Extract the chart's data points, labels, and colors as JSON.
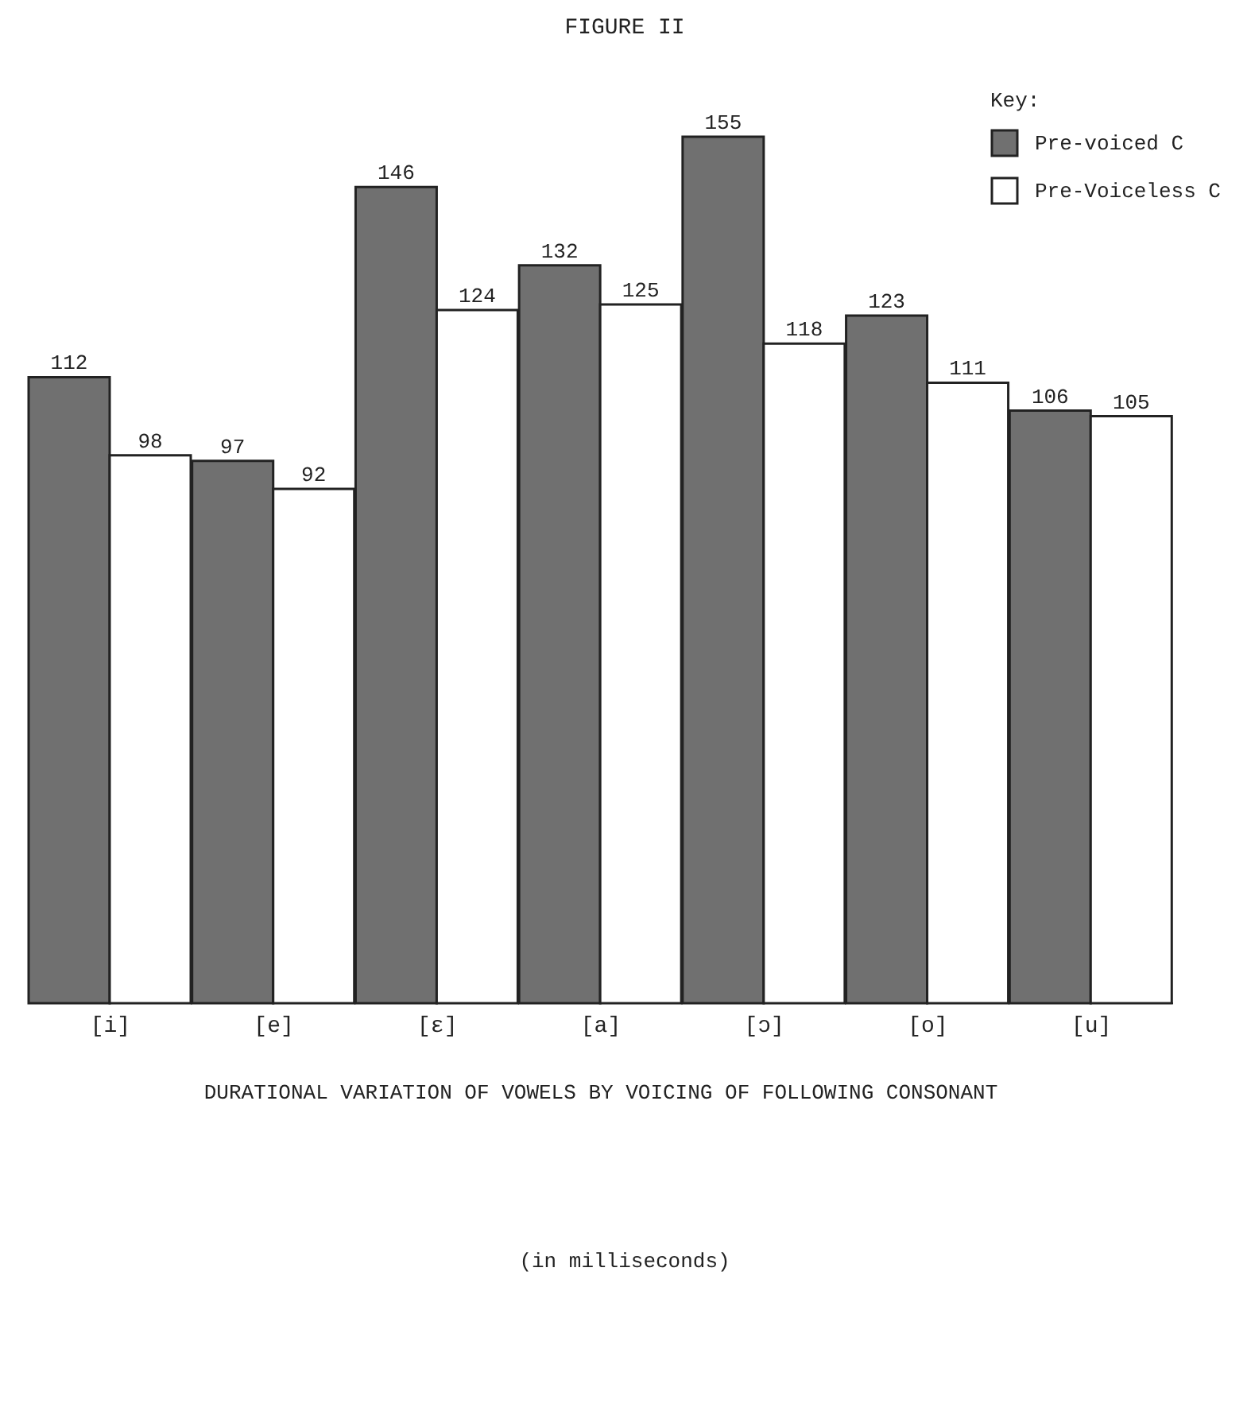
{
  "chart_data": {
    "type": "bar",
    "title": "FIGURE II",
    "xlabel": "DURATIONAL VARIATION OF VOWELS BY VOICING OF FOLLOWING CONSONANT",
    "annotations": [
      "(in milliseconds)"
    ],
    "categories": [
      "[i]",
      "[e]",
      "[ɛ]",
      "[a]",
      "[ɔ]",
      "[o]",
      "[u]"
    ],
    "series": [
      {
        "name": "Pre-voiced C",
        "color": "#707070",
        "values": [
          112,
          97,
          146,
          132,
          155,
          123,
          106
        ]
      },
      {
        "name": "Pre-Voiceless C",
        "color": "#ffffff",
        "values": [
          98,
          92,
          124,
          125,
          118,
          111,
          105
        ]
      }
    ],
    "legend_title": "Key:",
    "legend": "top right",
    "data_labels": true
  }
}
